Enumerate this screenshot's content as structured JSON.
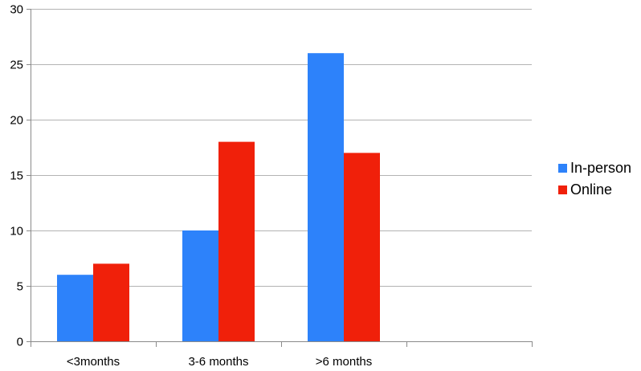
{
  "chart_data": {
    "type": "bar",
    "categories": [
      "<3months",
      "3-6 months",
      ">6 months",
      ""
    ],
    "series": [
      {
        "name": "In-person",
        "values": [
          6,
          10,
          26,
          null
        ],
        "color": "#2D82FA"
      },
      {
        "name": "Online",
        "values": [
          7,
          18,
          17,
          null
        ],
        "color": "#F0200A"
      }
    ],
    "title": "",
    "xlabel": "",
    "ylabel": "",
    "ylim": [
      0,
      30
    ],
    "yticks": [
      0,
      5,
      10,
      15,
      20,
      25,
      30
    ],
    "grid": true,
    "legend_position": "right"
  }
}
